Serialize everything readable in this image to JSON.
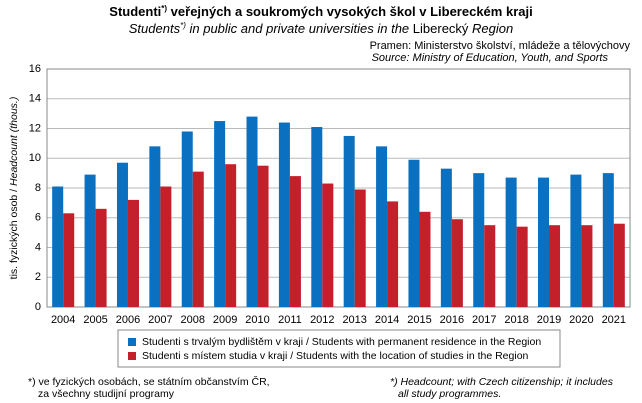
{
  "chart_data": {
    "type": "bar",
    "title": {
      "pre": "Studenti",
      "sup": "*)",
      "post": " veřejných a soukromých vysokých škol v Libereckém kraji"
    },
    "subtitle": {
      "pre": "Students",
      "sup": "*)",
      "post": " in public and private universities in the ",
      "mid": "Liberecký",
      "end": " Region"
    },
    "source": [
      "Pramen: Ministerstvo školství, mládeže a tělovýchovy",
      "Source: Ministry of Education, Youth, and Sports"
    ],
    "ylabel": {
      "cz": "tis. fyzických osob / ",
      "en": "Headcount (thous.)"
    },
    "categories": [
      "2004",
      "2005",
      "2006",
      "2007",
      "2008",
      "2009",
      "2010",
      "2011",
      "2012",
      "2013",
      "2014",
      "2015",
      "2016",
      "2017",
      "2018",
      "2019",
      "2020",
      "2021"
    ],
    "series": [
      {
        "name": "Studenti s trvalým bydlištěm v kraji / Students with permanent residence in the Region",
        "color": "#0a70bf",
        "values": [
          8.1,
          8.9,
          9.7,
          10.8,
          11.8,
          12.5,
          12.8,
          12.4,
          12.1,
          11.5,
          10.8,
          9.9,
          9.3,
          9.0,
          8.7,
          8.7,
          8.9,
          9.0
        ]
      },
      {
        "name": "Studenti s místem studia v kraji / Students with the location of studies in the Region",
        "color": "#c3202b",
        "values": [
          6.3,
          6.6,
          7.2,
          8.1,
          9.1,
          9.6,
          9.5,
          8.8,
          8.3,
          7.9,
          7.1,
          6.4,
          5.9,
          5.5,
          5.4,
          5.5,
          5.5,
          5.6
        ]
      }
    ],
    "ylim": [
      0,
      16
    ],
    "yticks": [
      0,
      2,
      4,
      6,
      8,
      10,
      12,
      14,
      16
    ],
    "grid": true,
    "footnote_cz": [
      "*) ve fyzických osobách, se státním občanstvím ČR,",
      "za všechny studijní programy"
    ],
    "footnote_en": [
      "*) Headcount; with Czech citizenship; it includes",
      "all study programmes."
    ]
  }
}
